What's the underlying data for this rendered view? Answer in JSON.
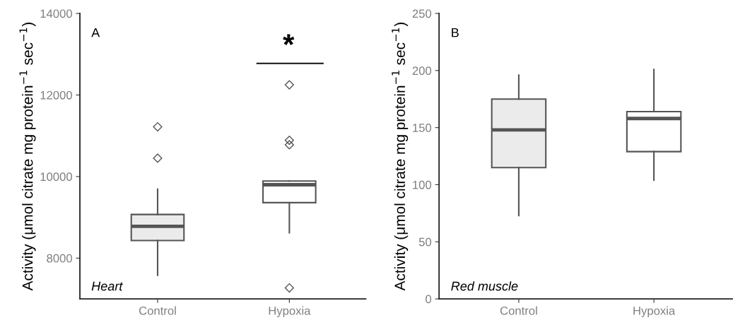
{
  "chart_data": [
    {
      "type": "box",
      "categories": [
        "Control",
        "Hypoxia"
      ],
      "ylabel": "Activity (μmol citrate mg protein$^{−1}$ sec$^{−1}$)",
      "ylim": [
        7000,
        14000
      ],
      "yticks": [
        8000,
        10000,
        12000,
        14000
      ],
      "colors": [
        "#ebebeb",
        "#ffffff"
      ],
      "marker": "diamond",
      "grid": false,
      "boxes": [
        {
          "low": 7580,
          "q1": 8430,
          "median": 8780,
          "q3": 9070,
          "high": 9690,
          "outliers": [
            10450,
            11220
          ]
        },
        {
          "low": 8620,
          "q1": 9360,
          "median": 9800,
          "q3": 9890,
          "high": 9890,
          "outliers": [
            7270,
            10780,
            10890,
            12250
          ]
        }
      ],
      "annotations": [
        "A",
        "Heart",
        "*"
      ]
    },
    {
      "type": "box",
      "categories": [
        "Control",
        "Hypoxia"
      ],
      "ylabel": "Activity (μmol citrate mg protein$^{−1}$ sec$^{−1}$)",
      "ylim": [
        0,
        250
      ],
      "yticks": [
        0,
        50,
        100,
        150,
        200,
        250
      ],
      "colors": [
        "#ebebeb",
        "#ffffff"
      ],
      "grid": false,
      "boxes": [
        {
          "low": 73,
          "q1": 115,
          "median": 148,
          "q3": 175,
          "high": 196
        },
        {
          "low": 104,
          "q1": 129,
          "median": 158,
          "q3": 164,
          "high": 201
        }
      ],
      "annotations": [
        "B",
        "Red muscle"
      ]
    }
  ]
}
